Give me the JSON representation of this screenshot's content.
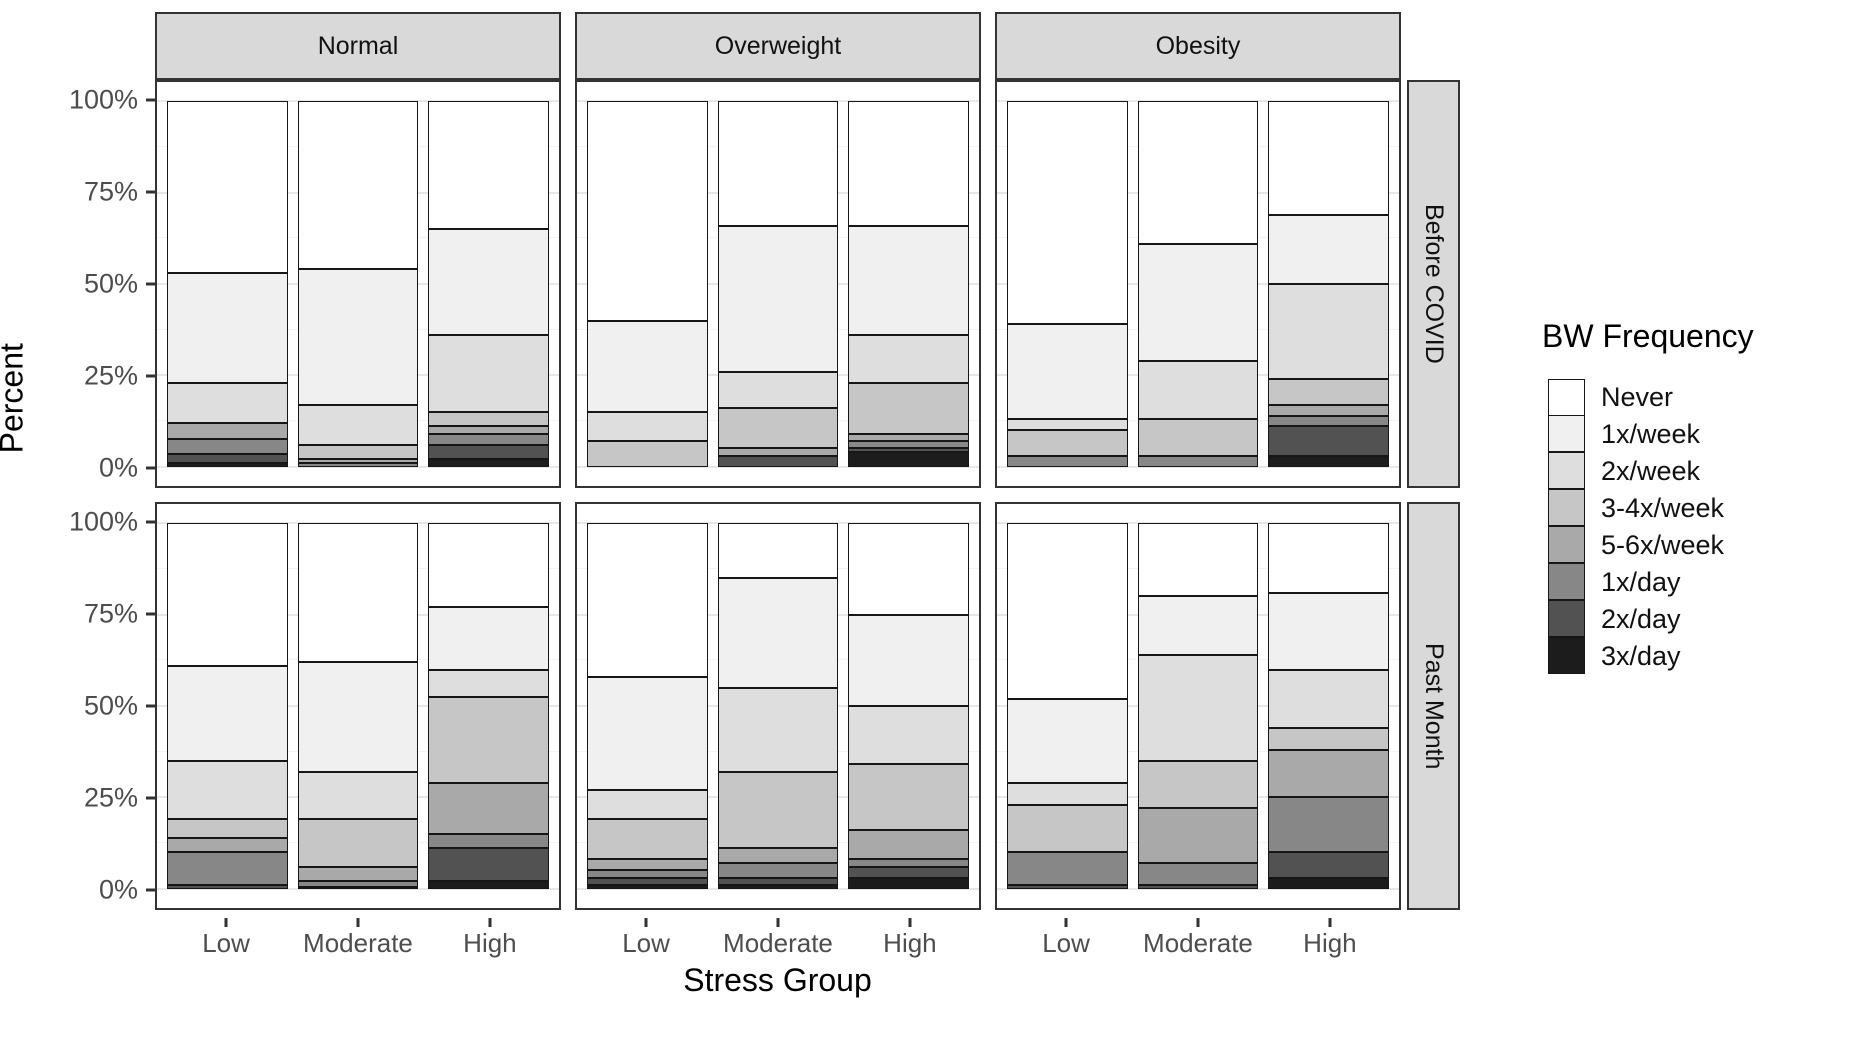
{
  "chart_data": {
    "type": "bar",
    "stacked": true,
    "facet_cols": [
      "Normal",
      "Overweight",
      "Obesity"
    ],
    "facet_rows": [
      "Before COVID",
      "Past Month"
    ],
    "categories": [
      "Low",
      "Moderate",
      "High"
    ],
    "xlabel": "Stress Group",
    "ylabel": "Percent",
    "y_ticks": [
      "100%",
      "75%",
      "50%",
      "25%",
      "0%"
    ],
    "ylim": [
      0,
      100
    ],
    "legend_title": "BW Frequency",
    "legend_position": "right",
    "grid": "major-and-minor",
    "series_names": [
      "Never",
      "1x/week",
      "2x/week",
      "3-4x/week",
      "5-6x/week",
      "1x/day",
      "2x/day",
      "3x/day"
    ],
    "series_colors": [
      "#ffffff",
      "#f0f0f0",
      "#dedede",
      "#c6c6c6",
      "#a9a9a9",
      "#878787",
      "#525252",
      "#1c1c1c"
    ],
    "values_note": "percent per stack segment, ordered as series_names (Never first = top of bar)",
    "panels": [
      {
        "row": "Before COVID",
        "col": "Normal",
        "bars": {
          "Low": [
            47,
            30,
            11,
            0,
            4.5,
            4,
            2.5,
            1
          ],
          "Moderate": [
            46,
            37,
            11,
            4,
            1,
            1,
            0,
            0
          ],
          "High": [
            35,
            29,
            21,
            4,
            2,
            3,
            4,
            2
          ]
        }
      },
      {
        "row": "Before COVID",
        "col": "Overweight",
        "bars": {
          "Low": [
            60,
            25,
            8,
            7,
            0,
            0,
            0,
            0
          ],
          "Moderate": [
            34,
            40,
            10,
            11,
            2,
            0,
            3,
            0
          ],
          "High": [
            34,
            30,
            13,
            14,
            2,
            2,
            1,
            4
          ]
        }
      },
      {
        "row": "Before COVID",
        "col": "Obesity",
        "bars": {
          "Low": [
            61,
            26,
            3,
            7,
            0,
            3,
            0,
            0
          ],
          "Moderate": [
            39,
            32,
            16,
            10,
            0,
            3,
            0,
            0
          ],
          "High": [
            31,
            19,
            26,
            7,
            3,
            3,
            8,
            3
          ]
        }
      },
      {
        "row": "Past Month",
        "col": "Normal",
        "bars": {
          "Low": [
            39,
            26,
            16,
            5,
            4,
            9,
            1,
            0
          ],
          "Moderate": [
            38,
            30,
            13,
            13,
            4,
            1.5,
            0.5,
            0
          ],
          "High": [
            23,
            17,
            7.5,
            23.5,
            14,
            4,
            9,
            2
          ]
        }
      },
      {
        "row": "Past Month",
        "col": "Overweight",
        "bars": {
          "Low": [
            42,
            31,
            8,
            11,
            3,
            2,
            2,
            1
          ],
          "Moderate": [
            15,
            30,
            23,
            21,
            4,
            4,
            2,
            1
          ],
          "High": [
            25,
            25,
            16,
            18,
            8,
            2,
            3,
            3
          ]
        }
      },
      {
        "row": "Past Month",
        "col": "Obesity",
        "bars": {
          "Low": [
            48,
            23,
            6,
            13,
            0,
            9,
            1,
            0
          ],
          "Moderate": [
            20,
            16,
            29,
            13,
            15,
            6,
            1,
            0
          ],
          "High": [
            19,
            21,
            16,
            6,
            13,
            15,
            7,
            3
          ]
        }
      }
    ]
  }
}
